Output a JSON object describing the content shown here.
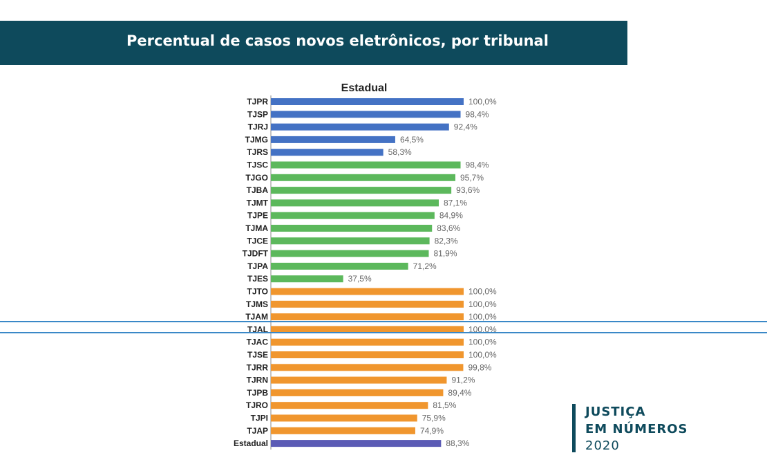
{
  "banner": {
    "title": "Percentual de casos novos eletrônicos, por tribunal"
  },
  "brand": {
    "line1": "JUSTIÇA",
    "line2": "EM NÚMEROS",
    "line3": "2020"
  },
  "colors": {
    "banner": "#0e4a5c",
    "blue": "#4472c4",
    "green": "#5cb85c",
    "orange": "#f0962e",
    "purple": "#5b5bb5",
    "highlight": "#3a88c7"
  },
  "chart_data": {
    "type": "bar",
    "orientation": "horizontal",
    "title": "Estadual",
    "xlim": [
      0,
      100
    ],
    "highlight": "TJAL",
    "categories": [
      "TJPR",
      "TJSP",
      "TJRJ",
      "TJMG",
      "TJRS",
      "TJSC",
      "TJGO",
      "TJBA",
      "TJMT",
      "TJPE",
      "TJMA",
      "TJCE",
      "TJDFT",
      "TJPA",
      "TJES",
      "TJTO",
      "TJMS",
      "TJAM",
      "TJAL",
      "TJAC",
      "TJSE",
      "TJRR",
      "TJRN",
      "TJPB",
      "TJRO",
      "TJPI",
      "TJAP",
      "Estadual"
    ],
    "values": [
      100.0,
      98.4,
      92.4,
      64.5,
      58.3,
      98.4,
      95.7,
      93.6,
      87.1,
      84.9,
      83.6,
      82.3,
      81.9,
      71.2,
      37.5,
      100.0,
      100.0,
      100.0,
      100.0,
      100.0,
      100.0,
      99.8,
      91.2,
      89.4,
      81.5,
      75.9,
      74.9,
      88.3
    ],
    "value_labels": [
      "100,0%",
      "98,4%",
      "92,4%",
      "64,5%",
      "58,3%",
      "98,4%",
      "95,7%",
      "93,6%",
      "87,1%",
      "84,9%",
      "83,6%",
      "82,3%",
      "81,9%",
      "71,2%",
      "37,5%",
      "100,0%",
      "100,0%",
      "100,0%",
      "100,0%",
      "100,0%",
      "100,0%",
      "99,8%",
      "91,2%",
      "89,4%",
      "81,5%",
      "75,9%",
      "74,9%",
      "88,3%"
    ],
    "groups": [
      "blue",
      "blue",
      "blue",
      "blue",
      "blue",
      "green",
      "green",
      "green",
      "green",
      "green",
      "green",
      "green",
      "green",
      "green",
      "green",
      "orange",
      "orange",
      "orange",
      "orange",
      "orange",
      "orange",
      "orange",
      "orange",
      "orange",
      "orange",
      "orange",
      "orange",
      "purple"
    ]
  }
}
